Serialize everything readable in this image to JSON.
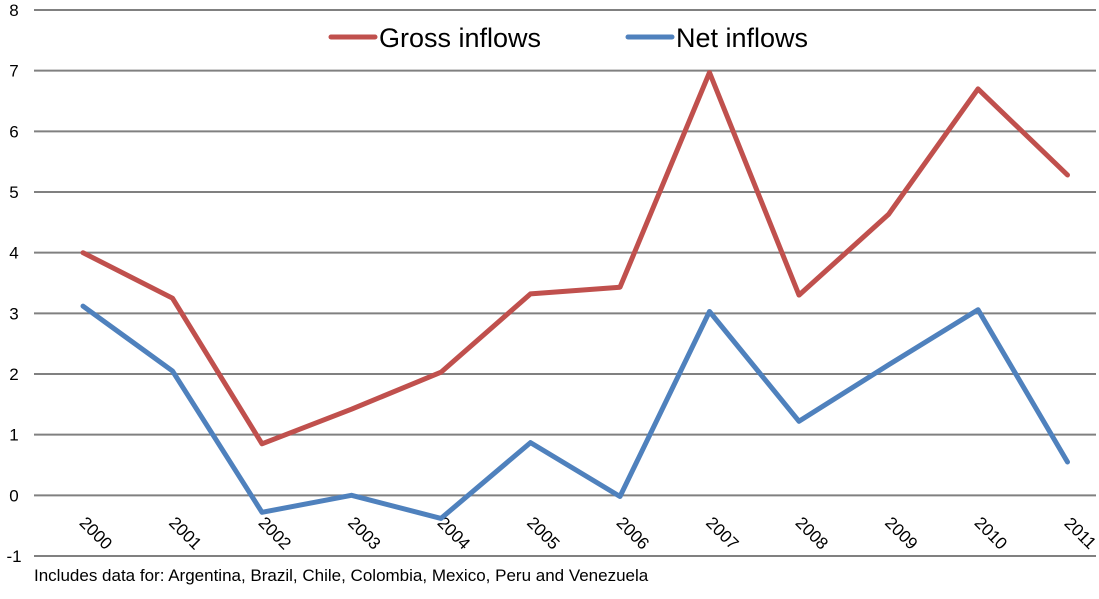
{
  "chart_data": {
    "type": "line",
    "title": "",
    "xlabel": "",
    "ylabel": "",
    "x": [
      "2000",
      "2001",
      "2002",
      "2003",
      "2004",
      "2005",
      "2006",
      "2007",
      "2008",
      "2009",
      "2010",
      "2011"
    ],
    "yticks": [
      "8",
      "7",
      "6",
      "5",
      "4",
      "3",
      "2",
      "1",
      "0",
      "-1"
    ],
    "ylim": [
      -1,
      8
    ],
    "grid": true,
    "legend_position": "top-center",
    "series": [
      {
        "name": "Gross inflows",
        "color": "#C0504D",
        "values": [
          4.0,
          3.25,
          0.85,
          1.42,
          2.03,
          3.32,
          3.43,
          6.97,
          3.3,
          4.63,
          6.7,
          5.28
        ]
      },
      {
        "name": "Net inflows",
        "color": "#4F81BD",
        "values": [
          3.12,
          2.05,
          -0.28,
          0.0,
          -0.38,
          0.87,
          -0.02,
          3.03,
          1.22,
          2.15,
          3.06,
          0.55
        ]
      }
    ]
  },
  "footnote": "Includes data for: Argentina, Brazil, Chile, Colombia, Mexico, Peru and Venezuela"
}
